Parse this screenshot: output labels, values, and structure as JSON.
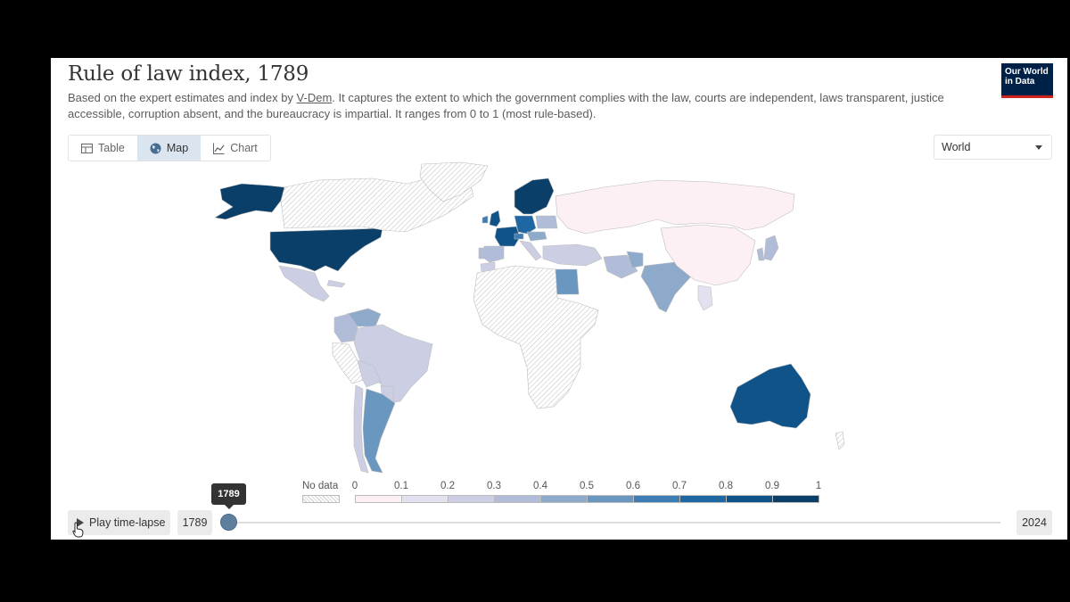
{
  "header": {
    "title": "Rule of law index, 1789",
    "subtitle_before": "Based on the expert estimates and index by ",
    "subtitle_link": "V-Dem",
    "subtitle_after": ". It captures the extent to which the government complies with the law, courts are independent, laws transparent, justice accessible, corruption absent, and the bureaucracy is impartial. It ranges from 0 to 1 (most rule-based).",
    "logo_line1": "Our World",
    "logo_line2": "in Data"
  },
  "tabs": [
    {
      "label": "Table",
      "icon": "table-icon",
      "active": false
    },
    {
      "label": "Map",
      "icon": "globe-icon",
      "active": true
    },
    {
      "label": "Chart",
      "icon": "line-chart-icon",
      "active": false
    }
  ],
  "region_select": {
    "value": "World"
  },
  "legend": {
    "no_data_label": "No data",
    "ticks": [
      "0",
      "0.1",
      "0.2",
      "0.3",
      "0.4",
      "0.5",
      "0.6",
      "0.7",
      "0.8",
      "0.9",
      "1"
    ],
    "colors": [
      "#fcf0f4",
      "#e3e1ef",
      "#cccfe4",
      "#b0bcd8",
      "#8eaacb",
      "#6a97c0",
      "#3e7db3",
      "#1f67a2",
      "#0f5389",
      "#0a3f6a"
    ]
  },
  "timeline": {
    "play_label": "Play time-lapse",
    "start_year": "1789",
    "end_year": "2024",
    "current_year": "1789"
  },
  "map_data": {
    "year": 1789,
    "countries": [
      {
        "name": "United States",
        "bin": 9
      },
      {
        "name": "Canada",
        "bin": -1
      },
      {
        "name": "Alaska",
        "bin": 9
      },
      {
        "name": "Mexico",
        "bin": 2
      },
      {
        "name": "Cuba",
        "bin": 2
      },
      {
        "name": "Venezuela",
        "bin": 4
      },
      {
        "name": "Colombia",
        "bin": 3
      },
      {
        "name": "Brazil",
        "bin": 2
      },
      {
        "name": "Peru",
        "bin": -1
      },
      {
        "name": "Bolivia",
        "bin": 2
      },
      {
        "name": "Paraguay",
        "bin": 2
      },
      {
        "name": "Argentina",
        "bin": 5
      },
      {
        "name": "Chile",
        "bin": 2
      },
      {
        "name": "Greenland",
        "bin": -1
      },
      {
        "name": "Scandinavia",
        "bin": 9
      },
      {
        "name": "United Kingdom",
        "bin": 8
      },
      {
        "name": "Ireland",
        "bin": 6
      },
      {
        "name": "France",
        "bin": 8
      },
      {
        "name": "Spain",
        "bin": 3
      },
      {
        "name": "Portugal",
        "bin": 3
      },
      {
        "name": "Germany",
        "bin": 7
      },
      {
        "name": "Switzerland",
        "bin": 6
      },
      {
        "name": "Austria",
        "bin": 4
      },
      {
        "name": "Italy",
        "bin": 2
      },
      {
        "name": "Poland",
        "bin": 3
      },
      {
        "name": "Russia",
        "bin": 0
      },
      {
        "name": "Ottoman Empire",
        "bin": 2
      },
      {
        "name": "Egypt",
        "bin": 5
      },
      {
        "name": "Morocco",
        "bin": 2
      },
      {
        "name": "Persia",
        "bin": 3
      },
      {
        "name": "Afghanistan",
        "bin": 4
      },
      {
        "name": "India",
        "bin": 4
      },
      {
        "name": "China",
        "bin": 0
      },
      {
        "name": "Japan",
        "bin": 3
      },
      {
        "name": "Korea",
        "bin": 3
      },
      {
        "name": "Thailand",
        "bin": 1
      },
      {
        "name": "Africa",
        "bin": -1
      },
      {
        "name": "Australia",
        "bin": 8
      },
      {
        "name": "New Zealand",
        "bin": -1
      }
    ]
  }
}
